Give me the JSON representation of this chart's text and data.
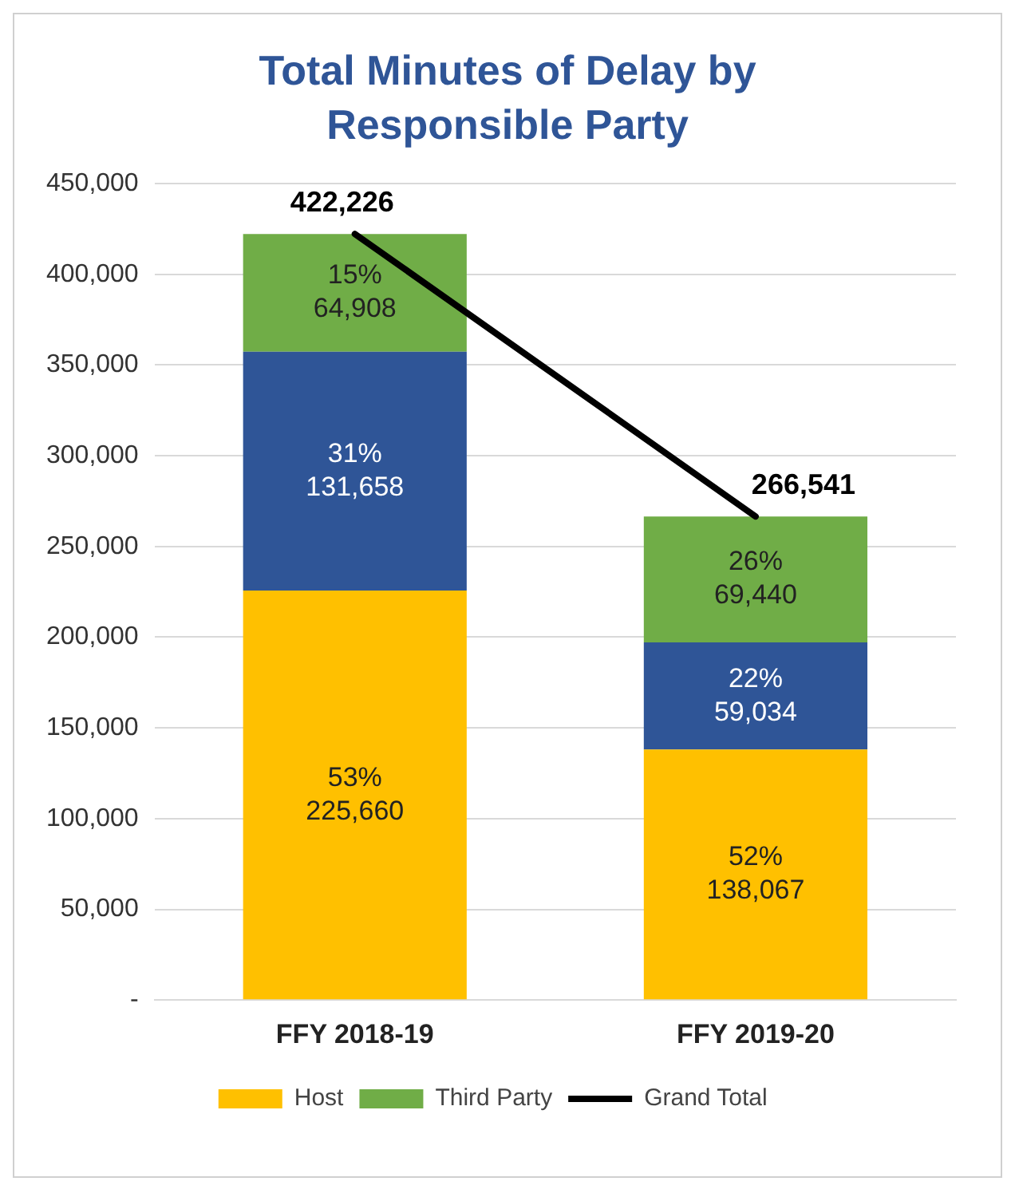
{
  "chart_data": {
    "type": "bar",
    "title": "Total Minutes of Delay by Responsible Party",
    "stacked": true,
    "categories": [
      "FFY 2018-19",
      "FFY 2019-20"
    ],
    "series": [
      {
        "name": "Host",
        "color": "#ffc000",
        "values": [
          225660,
          138067
        ],
        "value_labels": [
          "53%\n225,660",
          "52%\n138,067"
        ]
      },
      {
        "color": "#2f5597",
        "values": [
          131658,
          59034
        ],
        "value_labels": [
          "31%\n131,658",
          "22%\n59,034"
        ]
      },
      {
        "name": "Third Party",
        "color": "#70ad47",
        "values": [
          64908,
          69440
        ],
        "value_labels": [
          "15%\n64,908",
          "26%\n69,440"
        ]
      },
      {
        "name": "Grand Total",
        "type": "line",
        "color": "#000000",
        "values": [
          422226,
          266541
        ],
        "value_labels": [
          "422,226",
          "266,541"
        ]
      }
    ],
    "ylim": [
      0,
      450000
    ],
    "yticks": [
      {
        "value": 0,
        "label": "-"
      },
      {
        "value": 50000,
        "label": "50,000"
      },
      {
        "value": 100000,
        "label": "100,000"
      },
      {
        "value": 150000,
        "label": "150,000"
      },
      {
        "value": 200000,
        "label": "200,000"
      },
      {
        "value": 250000,
        "label": "250,000"
      },
      {
        "value": 300000,
        "label": "300,000"
      },
      {
        "value": 350000,
        "label": "350,000"
      },
      {
        "value": 400000,
        "label": "400,000"
      },
      {
        "value": 450000,
        "label": "450,000"
      }
    ],
    "grid": "y",
    "legend": "bottom",
    "marker": "none"
  }
}
